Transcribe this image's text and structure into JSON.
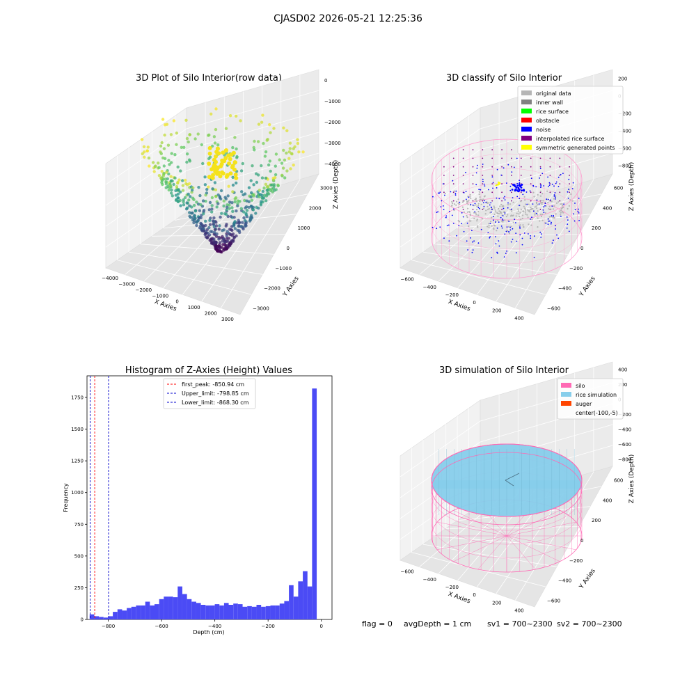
{
  "figure": {
    "suptitle": "CJASD02 2026-05-21 12:25:36",
    "status": {
      "flag": "flag = 0",
      "avg_depth": "avgDepth = 1 cm",
      "sv1": "sv1 = 700~2300",
      "sv2": "sv2 = 700~2300"
    }
  },
  "chart_data": [
    {
      "type": "scatter",
      "projection": "3d",
      "title": "3D Plot of Silo Interior(row data)",
      "xlabel": "X Axies",
      "ylabel": "Y Axies",
      "zlabel": "Z Axies (Depth)",
      "x_ticks": [
        "−4000",
        "−3000",
        "−2000",
        "−1000",
        "0",
        "1000",
        "2000",
        "3000"
      ],
      "y_ticks": [
        "−3000",
        "−2000",
        "−1000",
        "0",
        "1000",
        "2000",
        "3000"
      ],
      "z_ticks": [
        "0",
        "−1000",
        "−2000",
        "−3000",
        "−4000"
      ],
      "colormap": "viridis",
      "colors": {
        "low": "#440154",
        "mid": "#21918c",
        "high": "#fde725"
      }
    },
    {
      "type": "scatter",
      "projection": "3d",
      "title": "3D classify of Silo Interior",
      "xlabel": "X Axies",
      "ylabel": "Y Axies",
      "zlabel": "Z Axies (Depth)",
      "x_ticks": [
        "−600",
        "−400",
        "−200",
        "0",
        "200",
        "400"
      ],
      "y_ticks": [
        "−600",
        "−400",
        "−200",
        "0",
        "200",
        "400",
        "600"
      ],
      "z_ticks": [
        "200",
        "0",
        "−200",
        "−400",
        "−600",
        "−800"
      ],
      "legend_position": "top-right",
      "legend": [
        {
          "label": "original data",
          "color": "#b5b5b5"
        },
        {
          "label": "inner wall",
          "color": "#808080"
        },
        {
          "label": "rice surface",
          "color": "#00ff00"
        },
        {
          "label": "obstacle",
          "color": "#ff0000"
        },
        {
          "label": "noise",
          "color": "#0000ff"
        },
        {
          "label": "interpolated rice surface",
          "color": "#800080"
        },
        {
          "label": "symmetric generated points",
          "color": "#ffff00"
        }
      ],
      "cylinder_color": "#ff9ccf"
    },
    {
      "type": "bar",
      "title": "Histogram of Z-Axies (Height) Values",
      "xlabel": "Depth (cm)",
      "ylabel": "Frequency",
      "xlim": [
        -880,
        40
      ],
      "ylim": [
        0,
        1920
      ],
      "x_ticks": [
        -800,
        -600,
        -400,
        -200,
        0
      ],
      "x_tick_labels": [
        "−800",
        "−600",
        "−400",
        "−200",
        "0"
      ],
      "y_ticks": [
        0,
        250,
        500,
        750,
        1000,
        1250,
        1500,
        1750
      ],
      "bin_start": -870,
      "bin_width": 17.4,
      "values": [
        40,
        25,
        20,
        15,
        25,
        60,
        80,
        70,
        90,
        100,
        110,
        110,
        140,
        110,
        120,
        160,
        180,
        180,
        175,
        260,
        200,
        160,
        140,
        130,
        115,
        110,
        110,
        120,
        110,
        130,
        115,
        125,
        120,
        100,
        105,
        100,
        115,
        100,
        105,
        110,
        110,
        125,
        145,
        270,
        180,
        300,
        380,
        260,
        1820
      ],
      "bar_color": "#4b4bf5",
      "legend_position": "top-center",
      "vlines": [
        {
          "x": -850.94,
          "label": "first_peak: -850.94 cm",
          "color": "#ff0000"
        },
        {
          "x": -798.85,
          "label": "Upper_limit: -798.85 cm",
          "color": "#0000cc"
        },
        {
          "x": -868.3,
          "label": "Lower_limit: -868.30 cm",
          "color": "#0000cc"
        }
      ]
    },
    {
      "type": "surface",
      "projection": "3d",
      "title": "3D simulation of Silo Interior",
      "xlabel": "X Axies",
      "ylabel": "Y Axies",
      "zlabel": "Z Axies (Depth)",
      "x_ticks": [
        "−600",
        "−400",
        "−200",
        "0",
        "200",
        "400"
      ],
      "y_ticks": [
        "−600",
        "−400",
        "−200",
        "0",
        "200",
        "400",
        "600"
      ],
      "z_ticks": [
        "400",
        "200",
        "0",
        "−200",
        "−400",
        "−600",
        "−800"
      ],
      "legend_position": "top-right",
      "legend": [
        {
          "label": "silo",
          "color": "#ff69b4"
        },
        {
          "label": "rice simulation",
          "color": "#87ceeb"
        },
        {
          "label": "auger",
          "color": "#ff4500"
        },
        {
          "label": "center(-100,-5)",
          "color": "none"
        }
      ]
    }
  ]
}
